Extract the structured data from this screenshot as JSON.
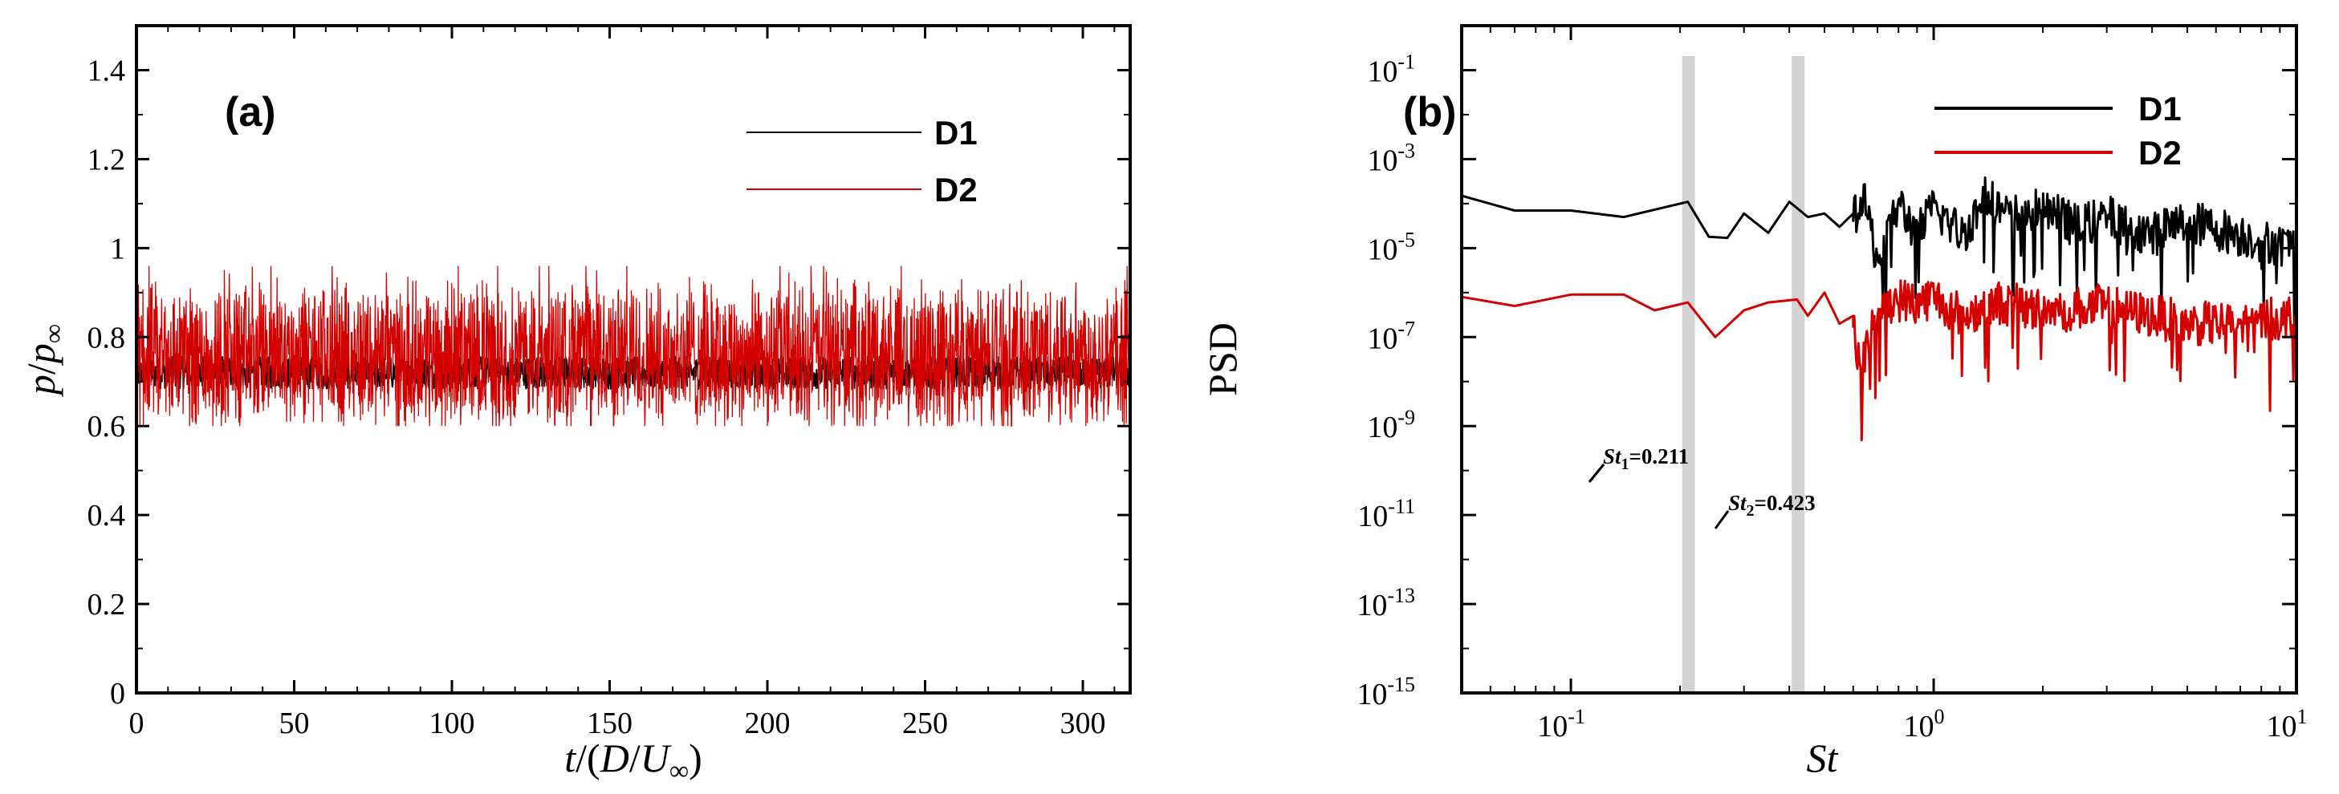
{
  "chart_data": [
    {
      "id": "a",
      "type": "line",
      "panel_label": "(a)",
      "xlabel": "t/(D/U∞)",
      "xlabel_parts": {
        "t": "t",
        "mid": "/(",
        "d": "D",
        "slash": "/",
        "u": "U",
        "sub": "∞",
        "end": ")"
      },
      "ylabel": "p/p∞",
      "ylabel_parts": {
        "p1": "p",
        "slash": "/",
        "p2": "p",
        "sub": "∞"
      },
      "xlim": [
        0,
        315
      ],
      "ylim": [
        0,
        1.5
      ],
      "xticks": [
        0,
        50,
        100,
        150,
        200,
        250,
        300
      ],
      "xtick_labels": [
        "0",
        "50",
        "100",
        "150",
        "200",
        "250",
        "300"
      ],
      "yticks": [
        0,
        0.2,
        0.4,
        0.6,
        0.8,
        1,
        1.2,
        1.4
      ],
      "ytick_labels": [
        "0",
        "0.2",
        "0.4",
        "0.6",
        "0.8",
        "1",
        "1.2",
        "1.4"
      ],
      "legend_position": "top-right",
      "series": [
        {
          "name": "D1",
          "color": "#000000",
          "mean": 0.72,
          "fluct_range": [
            0.67,
            0.77
          ]
        },
        {
          "name": "D2",
          "color": "#d40000",
          "mean": 0.76,
          "fluct_range": [
            0.6,
            0.96
          ]
        }
      ]
    },
    {
      "id": "b",
      "type": "line",
      "panel_label": "(b)",
      "xscale": "log",
      "yscale": "log",
      "xlabel": "St",
      "ylabel": "PSD",
      "xlim": [
        0.05,
        10
      ],
      "ylim": [
        1e-15,
        1
      ],
      "xticks": [
        0.1,
        1,
        10
      ],
      "xtick_labels": [
        {
          "base": "10",
          "exp": "-1"
        },
        {
          "base": "10",
          "exp": "0"
        },
        {
          "base": "10",
          "exp": "1"
        }
      ],
      "yticks": [
        1e-15,
        1e-13,
        1e-11,
        1e-09,
        1e-07,
        1e-05,
        0.001,
        0.1
      ],
      "ytick_labels": [
        {
          "base": "10",
          "exp": "-15"
        },
        {
          "base": "10",
          "exp": "-13"
        },
        {
          "base": "10",
          "exp": "-11"
        },
        {
          "base": "10",
          "exp": "-9"
        },
        {
          "base": "10",
          "exp": "-7"
        },
        {
          "base": "10",
          "exp": "-5"
        },
        {
          "base": "10",
          "exp": "-3"
        },
        {
          "base": "10",
          "exp": "-1"
        }
      ],
      "legend_position": "top-right",
      "highlight_bands": [
        {
          "St": 0.211,
          "label": {
            "s": "St",
            "sub": "1",
            "val": "=0.211"
          }
        },
        {
          "St": 0.423,
          "label": {
            "s": "St",
            "sub": "2",
            "val": "=0.423"
          }
        }
      ],
      "series": [
        {
          "name": "D1",
          "color": "#000000",
          "x": [
            0.05,
            0.07,
            0.1,
            0.14,
            0.21,
            0.24,
            0.27,
            0.3,
            0.35,
            0.4,
            0.45,
            0.5,
            0.55,
            0.6,
            0.65,
            0.7,
            0.8,
            0.9,
            1.0,
            1.2,
            1.4,
            1.6,
            2.0,
            2.5,
            3.0,
            4.0,
            5.0,
            7.0,
            10.0
          ],
          "y": [
            0.00015,
            7e-05,
            7e-05,
            5e-05,
            0.00011,
            1.8e-05,
            1.7e-05,
            6e-05,
            2.2e-05,
            0.00011,
            5e-05,
            6e-05,
            3e-05,
            6e-05,
            9e-05,
            5e-06,
            0.0001,
            2e-05,
            8e-05,
            2e-05,
            0.00015,
            5e-05,
            8e-05,
            3e-05,
            5e-05,
            2e-05,
            4e-05,
            2e-05,
            1e-05
          ],
          "noise_from_St": 0.6
        },
        {
          "name": "D2",
          "color": "#d40000",
          "x": [
            0.05,
            0.07,
            0.1,
            0.14,
            0.17,
            0.21,
            0.25,
            0.3,
            0.35,
            0.42,
            0.45,
            0.5,
            0.55,
            0.6,
            0.63,
            0.7,
            0.8,
            0.9,
            1.0,
            1.2,
            1.5,
            2.0,
            3.0,
            4.0,
            5.0,
            7.0,
            10.0
          ],
          "y": [
            8e-07,
            5e-07,
            9e-07,
            9e-07,
            4e-07,
            6e-07,
            1e-07,
            4e-07,
            6e-07,
            7e-07,
            3e-07,
            1e-06,
            2e-07,
            3e-07,
            1.5e-08,
            5e-07,
            7e-07,
            6e-07,
            8e-07,
            3e-07,
            6e-07,
            4e-07,
            5e-07,
            3e-07,
            2e-07,
            2e-07,
            3e-07
          ],
          "noise_from_St": 0.6
        }
      ]
    }
  ]
}
